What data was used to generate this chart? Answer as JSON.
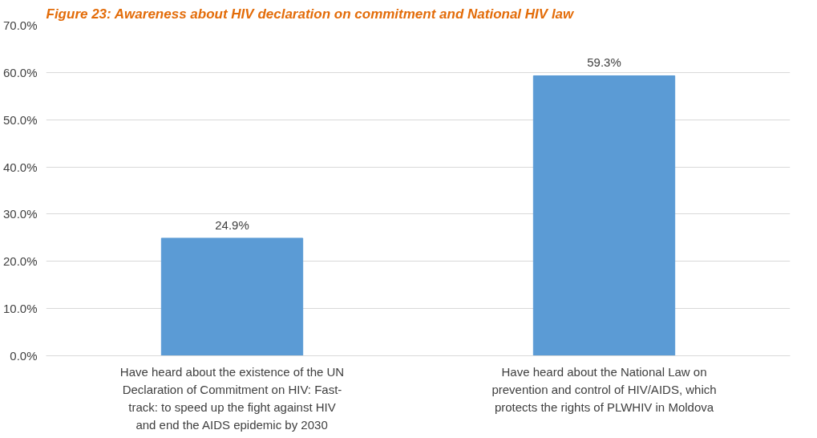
{
  "chart_data": {
    "type": "bar",
    "title": "Figure 23: Awareness about HIV declaration on commitment and National HIV law",
    "categories": [
      "Have heard about the existence of the UN Declaration of Commitment on HIV: Fast-track: to speed up the fight against HIV and end the AIDS epidemic by 2030",
      "Have heard about the National Law on prevention and control of HIV/AIDS, which protects the rights of PLWHIV in Moldova"
    ],
    "values": [
      24.9,
      59.3
    ],
    "color": "#5b9bd5",
    "value_labels": [
      "24.9%",
      "59.3%"
    ],
    "ylim": [
      0,
      70
    ],
    "yticks": [
      {
        "value": 0,
        "label": "0.0%"
      },
      {
        "value": 10,
        "label": "10.0%"
      },
      {
        "value": 20,
        "label": "20.0%"
      },
      {
        "value": 30,
        "label": "30.0%"
      },
      {
        "value": 40,
        "label": "40.0%"
      },
      {
        "value": 50,
        "label": "50.0%"
      },
      {
        "value": 60,
        "label": "60.0%"
      },
      {
        "value": 70,
        "label": "70.0%"
      }
    ],
    "grid": "y"
  }
}
